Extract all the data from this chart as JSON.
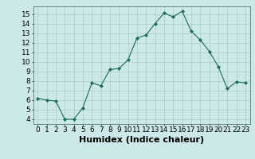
{
  "x": [
    0,
    1,
    2,
    3,
    4,
    5,
    6,
    7,
    8,
    9,
    10,
    11,
    12,
    13,
    14,
    15,
    16,
    17,
    18,
    19,
    20,
    21,
    22,
    23
  ],
  "y": [
    6.2,
    6.0,
    5.9,
    4.0,
    4.0,
    5.2,
    7.8,
    7.5,
    9.2,
    9.3,
    10.2,
    12.5,
    12.8,
    14.0,
    15.1,
    14.7,
    15.3,
    13.2,
    12.3,
    11.1,
    9.5,
    7.2,
    7.9,
    7.8
  ],
  "xlabel": "Humidex (Indice chaleur)",
  "xlim": [
    -0.5,
    23.5
  ],
  "ylim": [
    3.5,
    15.8
  ],
  "yticks": [
    4,
    5,
    6,
    7,
    8,
    9,
    10,
    11,
    12,
    13,
    14,
    15
  ],
  "xticks": [
    0,
    1,
    2,
    3,
    4,
    5,
    6,
    7,
    8,
    9,
    10,
    11,
    12,
    13,
    14,
    15,
    16,
    17,
    18,
    19,
    20,
    21,
    22,
    23
  ],
  "line_color": "#1a6b5a",
  "marker_color": "#1a6b5a",
  "bg_color": "#cce8e8",
  "grid_color": "#aacccc",
  "tick_label_fontsize": 6.5,
  "xlabel_fontsize": 8.0
}
